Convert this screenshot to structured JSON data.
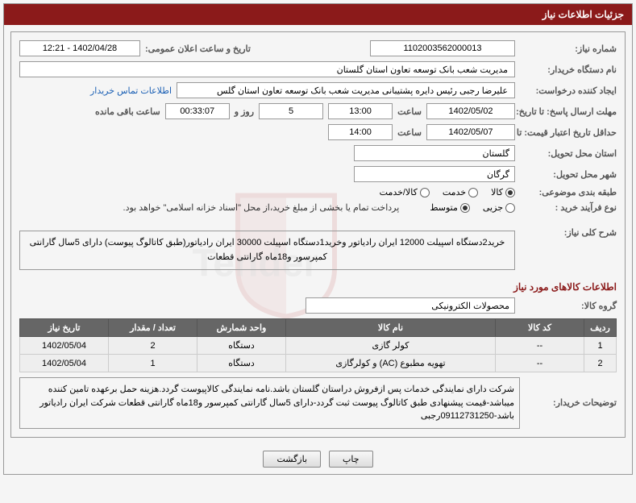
{
  "header": {
    "title": "جزئیات اطلاعات نیاز"
  },
  "fields": {
    "need_number_label": "شماره نیاز:",
    "need_number": "1102003562000013",
    "announce_label": "تاریخ و ساعت اعلان عمومی:",
    "announce_value": "1402/04/28 - 12:21",
    "buyer_org_label": "نام دستگاه خریدار:",
    "buyer_org": "مدیریت شعب بانک توسعه تعاون استان گلستان",
    "requester_label": "ایجاد کننده درخواست:",
    "requester": "علیرضا رجبی رئیس دایره پشتیبانی مدیریت شعب بانک توسعه تعاون استان گلس",
    "contact_link": "اطلاعات تماس خریدار",
    "deadline_reply_label": "مهلت ارسال پاسخ: تا تاریخ:",
    "deadline_reply_date": "1402/05/02",
    "time_label": "ساعت",
    "deadline_reply_time": "13:00",
    "days_and": "روز و",
    "days_value": "5",
    "remaining_time": "00:33:07",
    "remaining_label": "ساعت باقی مانده",
    "validity_label": "حداقل تاریخ اعتبار قیمت: تا تاریخ:",
    "validity_date": "1402/05/07",
    "validity_time": "14:00",
    "delivery_province_label": "استان محل تحویل:",
    "delivery_province": "گلستان",
    "delivery_city_label": "شهر محل تحویل:",
    "delivery_city": "گرگان",
    "classification_label": "طبقه بندی موضوعی:",
    "class_goods": "کالا",
    "class_service": "خدمت",
    "class_goods_service": "کالا/خدمت",
    "purchase_type_label": "نوع فرآیند خرید :",
    "type_minor": "جزیی",
    "type_medium": "متوسط",
    "payment_note": "پرداخت تمام یا بخشی از مبلغ خرید،از محل \"اسناد خزانه اسلامی\" خواهد بود.",
    "need_summary_label": "شرح کلی نیاز:",
    "need_summary": "خرید2دستگاه اسپیلت 12000 ایران رادیاتور وخرید1دستگاه اسپیلت 30000 ایران رادیاتور(طبق کاتالوگ پیوست) دارای 5سال گارانتی کمپرسور و18ماه گارانتی قطعات",
    "goods_info_title": "اطلاعات کالاهای مورد نیاز",
    "goods_group_label": "گروه کالا:",
    "goods_group": "محصولات الکترونیکی",
    "buyer_notes_label": "توضیحات خریدار:",
    "buyer_notes": "شرکت دارای نمایندگی خدمات پس ازفروش دراستان گلستان باشد.نامه نمایندگی کالاپیوست گردد.هزینه حمل برعهده تامین کننده میباشد-قیمت پیشنهادی طبق کاتالوگ پیوست ثبت گردد-دارای 5سال گارانتی کمپرسور و18ماه گارانتی قطعات شرکت ایران رادیاتور باشد-09112731250رجبی"
  },
  "table": {
    "columns": [
      "ردیف",
      "کد کالا",
      "نام کالا",
      "واحد شمارش",
      "تعداد / مقدار",
      "تاریخ نیاز"
    ],
    "rows": [
      [
        "1",
        "--",
        "کولر گازی",
        "دستگاه",
        "2",
        "1402/05/04"
      ],
      [
        "2",
        "--",
        "تهویه مطبوع (AC) و کولرگازی",
        "دستگاه",
        "1",
        "1402/05/04"
      ]
    ],
    "col_widths": [
      "40px",
      "110px",
      "auto",
      "110px",
      "110px",
      "110px"
    ]
  },
  "buttons": {
    "print": "چاپ",
    "back": "بازگشت"
  },
  "colors": {
    "header_bg": "#8b1a1a",
    "th_bg": "#666666",
    "td_bg": "#eeeeee",
    "link": "#1a5fb4"
  }
}
